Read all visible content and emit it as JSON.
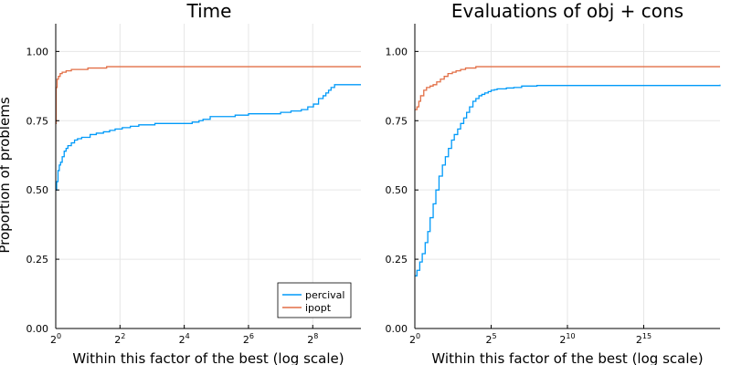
{
  "chart_data": [
    {
      "type": "line",
      "step": true,
      "title": "Time",
      "xlabel": "Within this factor of the best (log scale)",
      "ylabel": "Proportion of problems",
      "xscale": "log2",
      "xlim": [
        1,
        724
      ],
      "ylim": [
        0,
        1.1
      ],
      "xticks": [
        {
          "value": 1,
          "base": "2",
          "exp": "0"
        },
        {
          "value": 4,
          "base": "2",
          "exp": "2"
        },
        {
          "value": 16,
          "base": "2",
          "exp": "4"
        },
        {
          "value": 64,
          "base": "2",
          "exp": "6"
        },
        {
          "value": 256,
          "base": "2",
          "exp": "8"
        }
      ],
      "yticks": [
        "0.00",
        "0.25",
        "0.50",
        "0.75",
        "1.00"
      ],
      "grid": true,
      "legend_position": "bottom-right",
      "legend": [
        "percival",
        "ipopt"
      ],
      "series": [
        {
          "name": "percival",
          "color": "#009af9",
          "x": [
            1,
            1.02,
            1.05,
            1.08,
            1.11,
            1.15,
            1.2,
            1.25,
            1.3,
            1.4,
            1.5,
            1.6,
            1.75,
            1.9,
            2.1,
            2.4,
            2.8,
            3.2,
            3.6,
            4.2,
            5.0,
            6.0,
            7.0,
            8.5,
            10.5,
            13,
            16,
            19,
            22,
            24,
            28,
            36,
            48,
            64,
            80,
            100,
            128,
            160,
            200,
            230,
            260,
            290,
            320,
            340,
            360,
            380,
            410,
            724
          ],
          "y": [
            0.5,
            0.53,
            0.57,
            0.59,
            0.6,
            0.62,
            0.64,
            0.65,
            0.66,
            0.67,
            0.68,
            0.685,
            0.69,
            0.69,
            0.7,
            0.705,
            0.71,
            0.715,
            0.72,
            0.725,
            0.73,
            0.735,
            0.735,
            0.74,
            0.74,
            0.74,
            0.74,
            0.745,
            0.75,
            0.755,
            0.765,
            0.765,
            0.77,
            0.775,
            0.775,
            0.775,
            0.78,
            0.785,
            0.79,
            0.8,
            0.81,
            0.83,
            0.84,
            0.85,
            0.86,
            0.87,
            0.88,
            0.88
          ]
        },
        {
          "name": "ipopt",
          "color": "#e26f46",
          "x": [
            1,
            1.01,
            1.03,
            1.06,
            1.1,
            1.15,
            1.25,
            1.4,
            1.6,
            2.0,
            2.5,
            3.0,
            724
          ],
          "y": [
            0.74,
            0.87,
            0.9,
            0.91,
            0.92,
            0.925,
            0.93,
            0.935,
            0.935,
            0.94,
            0.94,
            0.945,
            0.945
          ]
        }
      ]
    },
    {
      "type": "line",
      "step": true,
      "title": "Evaluations of obj + cons",
      "xlabel": "Within this factor of the best (log scale)",
      "ylabel": "",
      "xscale": "log2",
      "xlim": [
        1,
        1048576
      ],
      "ylim": [
        0,
        1.1
      ],
      "xticks": [
        {
          "value": 1,
          "base": "2",
          "exp": "0"
        },
        {
          "value": 32,
          "base": "2",
          "exp": "5"
        },
        {
          "value": 1024,
          "base": "2",
          "exp": "10"
        },
        {
          "value": 32768,
          "base": "2",
          "exp": "15"
        }
      ],
      "yticks": [
        "0.00",
        "0.25",
        "0.50",
        "0.75",
        "1.00"
      ],
      "grid": true,
      "series": [
        {
          "name": "percival",
          "color": "#009af9",
          "x": [
            1,
            1.1,
            1.25,
            1.4,
            1.6,
            1.8,
            2.0,
            2.3,
            2.6,
            3.0,
            3.5,
            4.0,
            4.6,
            5.3,
            6.0,
            7.0,
            8.0,
            9.2,
            10.5,
            12,
            14,
            16,
            18.4,
            21,
            24,
            28,
            32,
            37,
            42,
            48,
            64,
            90,
            128,
            256,
            362,
            1048576
          ],
          "y": [
            0.19,
            0.21,
            0.24,
            0.27,
            0.31,
            0.35,
            0.4,
            0.45,
            0.5,
            0.55,
            0.59,
            0.62,
            0.65,
            0.68,
            0.7,
            0.72,
            0.74,
            0.76,
            0.78,
            0.8,
            0.82,
            0.83,
            0.84,
            0.845,
            0.85,
            0.855,
            0.86,
            0.862,
            0.865,
            0.865,
            0.868,
            0.87,
            0.875,
            0.877,
            0.877,
            0.88
          ]
        },
        {
          "name": "ipopt",
          "color": "#e26f46",
          "x": [
            1,
            1.1,
            1.2,
            1.3,
            1.5,
            1.7,
            2.0,
            2.3,
            2.7,
            3.2,
            3.8,
            4.5,
            5.5,
            6.5,
            8.0,
            10,
            12,
            16,
            20,
            25,
            1048576
          ],
          "y": [
            0.79,
            0.8,
            0.82,
            0.84,
            0.86,
            0.87,
            0.875,
            0.88,
            0.89,
            0.9,
            0.91,
            0.92,
            0.925,
            0.93,
            0.935,
            0.94,
            0.94,
            0.945,
            0.945,
            0.945,
            0.945
          ]
        }
      ]
    }
  ]
}
